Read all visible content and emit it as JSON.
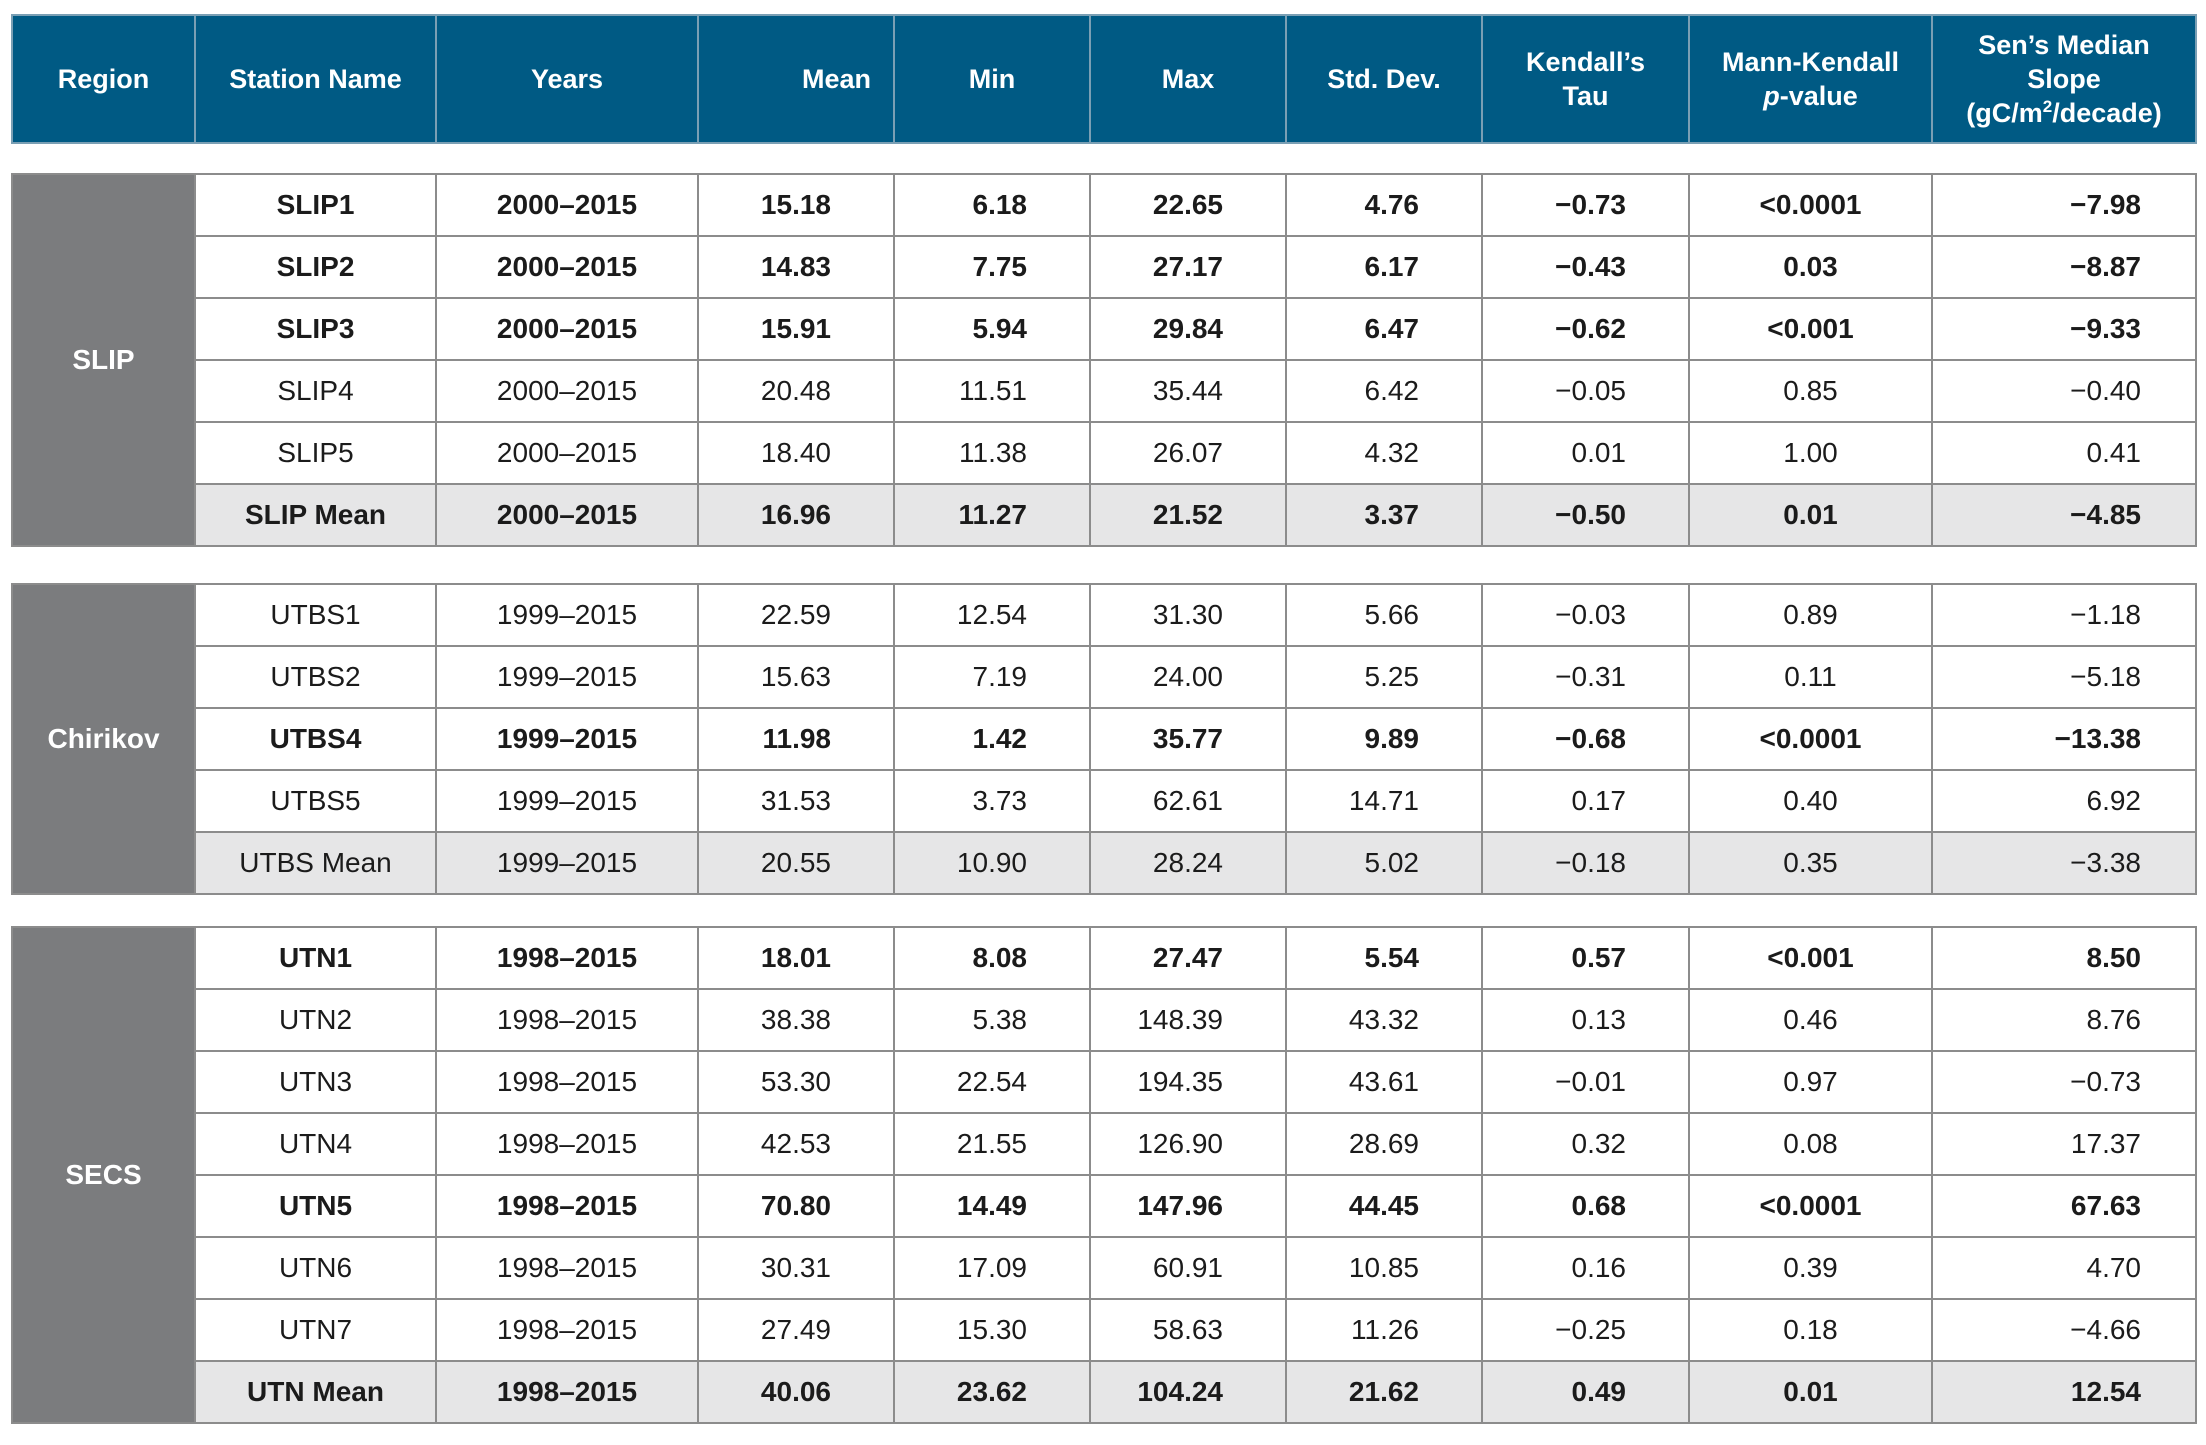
{
  "headers": {
    "region": "Region",
    "station": "Station Name",
    "years": "Years",
    "mean": "Mean",
    "min": "Min",
    "max": "Max",
    "std": "Std. Dev.",
    "tau_l1": "Kendall’s",
    "tau_l2": "Tau",
    "mk_l1": "Mann-Kendall",
    "mk_p": "p",
    "mk_l2": "-value",
    "sen_l1": "Sen’s Median",
    "sen_l2": "Slope",
    "sen_l3a": "(gC/m",
    "sen_sup": "2",
    "sen_l3b": "/decade)"
  },
  "groups": [
    {
      "region": "SLIP",
      "rows": [
        {
          "station": "SLIP1",
          "years": "2000–2015",
          "mean": "15.18",
          "min": "6.18",
          "max": "22.65",
          "std": "4.76",
          "tau": "−0.73",
          "p": "<0.0001",
          "sen": "−7.98",
          "bold": true,
          "summary": false
        },
        {
          "station": "SLIP2",
          "years": "2000–2015",
          "mean": "14.83",
          "min": "7.75",
          "max": "27.17",
          "std": "6.17",
          "tau": "−0.43",
          "p": "0.03",
          "sen": "−8.87",
          "bold": true,
          "summary": false
        },
        {
          "station": "SLIP3",
          "years": "2000–2015",
          "mean": "15.91",
          "min": "5.94",
          "max": "29.84",
          "std": "6.47",
          "tau": "−0.62",
          "p": "<0.001",
          "sen": "−9.33",
          "bold": true,
          "summary": false
        },
        {
          "station": "SLIP4",
          "years": "2000–2015",
          "mean": "20.48",
          "min": "11.51",
          "max": "35.44",
          "std": "6.42",
          "tau": "−0.05",
          "p": "0.85",
          "sen": "−0.40",
          "bold": false,
          "summary": false
        },
        {
          "station": "SLIP5",
          "years": "2000–2015",
          "mean": "18.40",
          "min": "11.38",
          "max": "26.07",
          "std": "4.32",
          "tau": "0.01",
          "p": "1.00",
          "sen": "0.41",
          "bold": false,
          "summary": false
        },
        {
          "station": "SLIP Mean",
          "years": "2000–2015",
          "mean": "16.96",
          "min": "11.27",
          "max": "21.52",
          "std": "3.37",
          "tau": "−0.50",
          "p": "0.01",
          "sen": "−4.85",
          "bold": true,
          "summary": true
        }
      ]
    },
    {
      "region": "Chirikov",
      "rows": [
        {
          "station": "UTBS1",
          "years": "1999–2015",
          "mean": "22.59",
          "min": "12.54",
          "max": "31.30",
          "std": "5.66",
          "tau": "−0.03",
          "p": "0.89",
          "sen": "−1.18",
          "bold": false,
          "summary": false
        },
        {
          "station": "UTBS2",
          "years": "1999–2015",
          "mean": "15.63",
          "min": "7.19",
          "max": "24.00",
          "std": "5.25",
          "tau": "−0.31",
          "p": "0.11",
          "sen": "−5.18",
          "bold": false,
          "summary": false
        },
        {
          "station": "UTBS4",
          "years": "1999–2015",
          "mean": "11.98",
          "min": "1.42",
          "max": "35.77",
          "std": "9.89",
          "tau": "−0.68",
          "p": "<0.0001",
          "sen": "−13.38",
          "bold": true,
          "summary": false
        },
        {
          "station": "UTBS5",
          "years": "1999–2015",
          "mean": "31.53",
          "min": "3.73",
          "max": "62.61",
          "std": "14.71",
          "tau": "0.17",
          "p": "0.40",
          "sen": "6.92",
          "bold": false,
          "summary": false
        },
        {
          "station": "UTBS Mean",
          "years": "1999–2015",
          "mean": "20.55",
          "min": "10.90",
          "max": "28.24",
          "std": "5.02",
          "tau": "−0.18",
          "p": "0.35",
          "sen": "−3.38",
          "bold": false,
          "summary": true
        }
      ]
    },
    {
      "region": "SECS",
      "rows": [
        {
          "station": "UTN1",
          "years": "1998–2015",
          "mean": "18.01",
          "min": "8.08",
          "max": "27.47",
          "std": "5.54",
          "tau": "0.57",
          "p": "<0.001",
          "sen": "8.50",
          "bold": true,
          "summary": false
        },
        {
          "station": "UTN2",
          "years": "1998–2015",
          "mean": "38.38",
          "min": "5.38",
          "max": "148.39",
          "std": "43.32",
          "tau": "0.13",
          "p": "0.46",
          "sen": "8.76",
          "bold": false,
          "summary": false
        },
        {
          "station": "UTN3",
          "years": "1998–2015",
          "mean": "53.30",
          "min": "22.54",
          "max": "194.35",
          "std": "43.61",
          "tau": "−0.01",
          "p": "0.97",
          "sen": "−0.73",
          "bold": false,
          "summary": false
        },
        {
          "station": "UTN4",
          "years": "1998–2015",
          "mean": "42.53",
          "min": "21.55",
          "max": "126.90",
          "std": "28.69",
          "tau": "0.32",
          "p": "0.08",
          "sen": "17.37",
          "bold": false,
          "summary": false
        },
        {
          "station": "UTN5",
          "years": "1998–2015",
          "mean": "70.80",
          "min": "14.49",
          "max": "147.96",
          "std": "44.45",
          "tau": "0.68",
          "p": "<0.0001",
          "sen": "67.63",
          "bold": true,
          "summary": false
        },
        {
          "station": "UTN6",
          "years": "1998–2015",
          "mean": "30.31",
          "min": "17.09",
          "max": "60.91",
          "std": "10.85",
          "tau": "0.16",
          "p": "0.39",
          "sen": "4.70",
          "bold": false,
          "summary": false
        },
        {
          "station": "UTN7",
          "years": "1998–2015",
          "mean": "27.49",
          "min": "15.30",
          "max": "58.63",
          "std": "11.26",
          "tau": "−0.25",
          "p": "0.18",
          "sen": "−4.66",
          "bold": false,
          "summary": false
        },
        {
          "station": "UTN Mean",
          "years": "1998–2015",
          "mean": "40.06",
          "min": "23.62",
          "max": "104.24",
          "std": "21.62",
          "tau": "0.49",
          "p": "0.01",
          "sen": "12.54",
          "bold": true,
          "summary": true
        }
      ]
    }
  ],
  "colors": {
    "header_bg": "#005a84",
    "region_bg": "#7b7c7e",
    "summary_bg": "#e6e6e7",
    "border": "#8c8c8c"
  }
}
